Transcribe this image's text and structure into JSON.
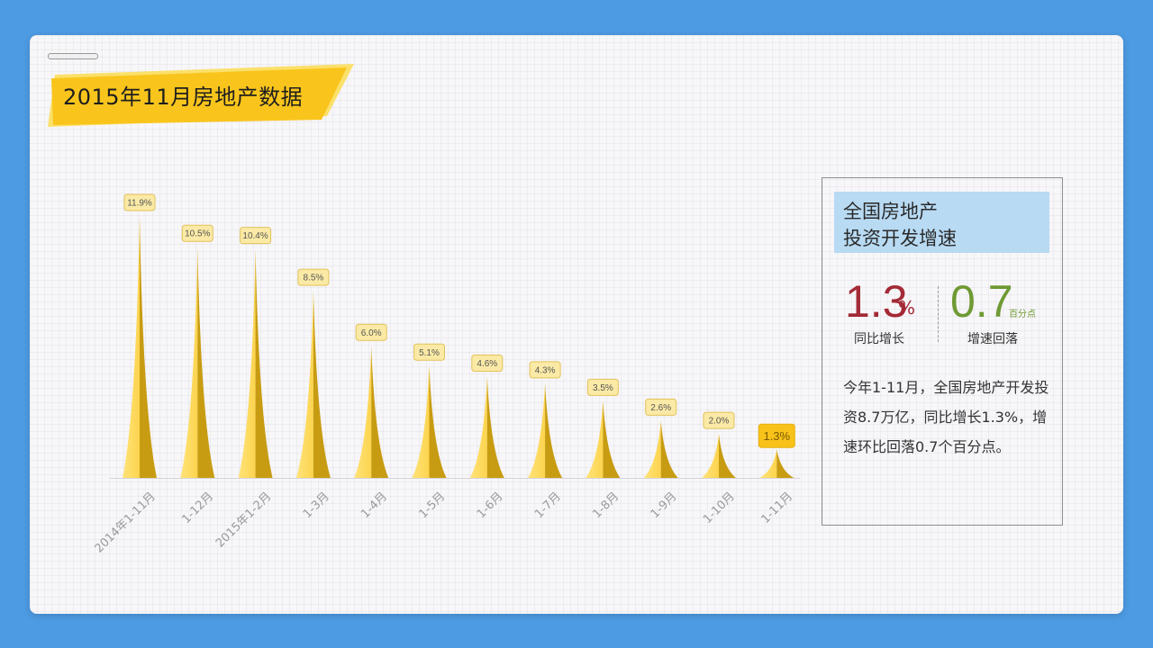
{
  "title": "2015年11月房地产数据",
  "colors": {
    "background": "#4d9be3",
    "accent": "#f9c51c",
    "bar_light": "#fcd44e",
    "bar_dark": "#c89c12",
    "highlight": "#f8c21a",
    "red": "#a32a36",
    "green": "#6f9a34",
    "panel_head": "#b8daf3"
  },
  "panel": {
    "heading_line1": "全国房地产",
    "heading_line2": "投资开发增速",
    "stat1_value": "1.3",
    "stat1_unit": "%",
    "stat1_label": "同比增长",
    "stat2_value": "0.7",
    "stat2_unit": "百分点",
    "stat2_label": "增速回落",
    "description": "今年1-11月，全国房地产开发投资8.7万亿，同比增长1.3%，增速环比回落0.7个百分点。"
  },
  "chart_data": {
    "type": "bar",
    "title": "",
    "xlabel": "",
    "ylabel": "",
    "ylim": [
      0,
      13
    ],
    "categories": [
      "2014年1-11月",
      "1-12月",
      "2015年1-2月",
      "1-3月",
      "1-4月",
      "1-5月",
      "1-6月",
      "1-7月",
      "1-8月",
      "1-9月",
      "1-10月",
      "1-11月"
    ],
    "values": [
      11.9,
      10.5,
      10.4,
      8.5,
      6.0,
      5.1,
      4.6,
      4.3,
      3.5,
      2.6,
      2.0,
      1.3
    ],
    "data_labels": [
      "11.9%",
      "10.5%",
      "10.4%",
      "8.5%",
      "6.0%",
      "5.1%",
      "4.6%",
      "4.3%",
      "3.5%",
      "2.6%",
      "2.0%",
      "1.3%"
    ],
    "highlight_index": 11
  }
}
